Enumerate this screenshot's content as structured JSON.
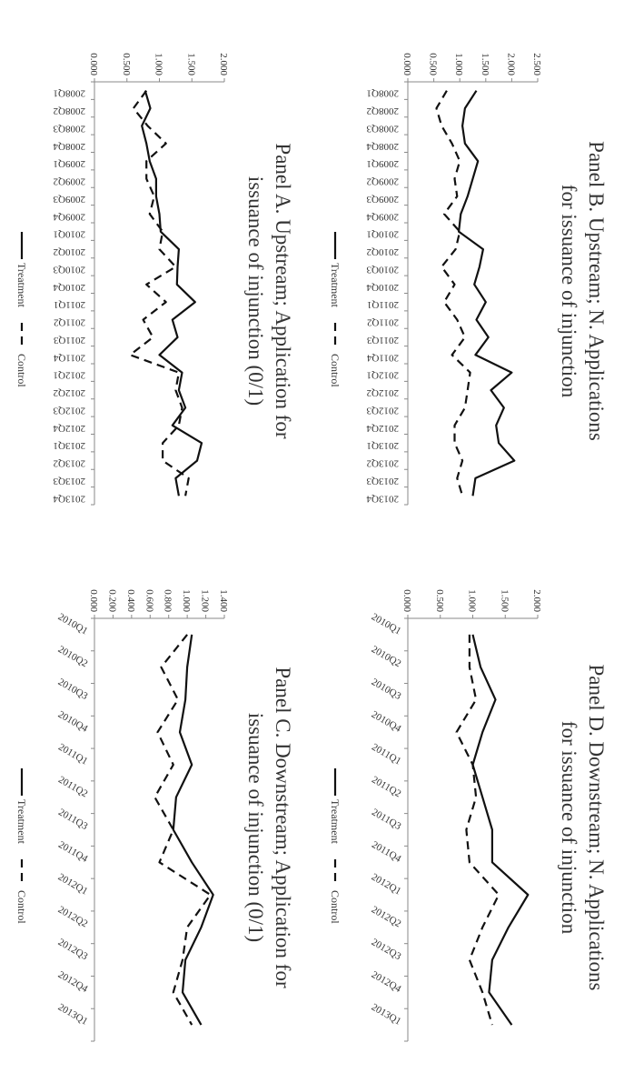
{
  "chart_data": [
    {
      "type": "line",
      "title": "Panel A. Upstream; Application for issuance of injunction (0/1)",
      "title_lines": [
        "Panel A. Upstream; Application for",
        "issuance of injunction (0/1)"
      ],
      "xlabel": "",
      "ylabel": "",
      "ylim": [
        0,
        2.0
      ],
      "yticks": [
        "0.000",
        "0.500",
        "1.000",
        "1.500",
        "2.000"
      ],
      "grid": false,
      "legend": "bottom",
      "categories": [
        "2008Q1",
        "2008Q2",
        "2008Q3",
        "2008Q4",
        "2009Q1",
        "2009Q2",
        "2009Q3",
        "2009Q4",
        "2010Q1",
        "2010Q2",
        "2010Q3",
        "2010Q4",
        "2011Q1",
        "2011Q2",
        "2011Q3",
        "2011Q4",
        "2012Q1",
        "2012Q2",
        "2012Q3",
        "2012Q4",
        "2013Q1",
        "2013Q2",
        "2013Q3",
        "2013Q4"
      ],
      "series": [
        {
          "name": "Treatment",
          "style": "solid",
          "values": [
            0.78,
            0.86,
            0.73,
            0.8,
            0.85,
            0.95,
            0.95,
            1.0,
            1.02,
            1.3,
            1.28,
            1.27,
            1.55,
            1.2,
            1.28,
            1.0,
            1.35,
            1.3,
            1.4,
            1.2,
            1.65,
            1.58,
            1.25,
            1.3
          ]
        },
        {
          "name": "Control",
          "style": "dashed",
          "values": [
            0.8,
            0.6,
            0.82,
            1.1,
            0.8,
            0.8,
            0.92,
            0.85,
            1.05,
            1.0,
            1.25,
            0.8,
            1.1,
            0.75,
            0.9,
            0.55,
            1.3,
            1.25,
            1.35,
            1.3,
            1.05,
            1.05,
            1.45,
            1.4
          ]
        }
      ]
    },
    {
      "type": "line",
      "title": "Panel B. Upstream; N. Applications for issuance of injunction",
      "title_lines": [
        "Panel B. Upstream; N. Applications",
        "for issuance of injunction"
      ],
      "xlabel": "",
      "ylabel": "",
      "ylim": [
        0,
        2.5
      ],
      "yticks": [
        "0.000",
        "0.500",
        "1.000",
        "1.500",
        "2.000",
        "2.500"
      ],
      "grid": false,
      "legend": "bottom",
      "categories": [
        "2008Q1",
        "2008Q2",
        "2008Q3",
        "2008Q4",
        "2009Q1",
        "2009Q2",
        "2009Q3",
        "2009Q4",
        "2010Q1",
        "2010Q2",
        "2010Q3",
        "2010Q4",
        "2011Q1",
        "2011Q2",
        "2011Q3",
        "2011Q4",
        "2012Q1",
        "2012Q2",
        "2012Q3",
        "2012Q4",
        "2013Q1",
        "2013Q2",
        "2013Q3",
        "2013Q4"
      ],
      "series": [
        {
          "name": "Treatment",
          "style": "solid",
          "values": [
            1.32,
            1.1,
            1.05,
            1.1,
            1.35,
            1.25,
            1.15,
            1.02,
            0.98,
            1.45,
            1.38,
            1.28,
            1.5,
            1.32,
            1.55,
            1.3,
            2.0,
            1.6,
            1.85,
            1.7,
            1.75,
            2.05,
            1.3,
            1.25
          ]
        },
        {
          "name": "Control",
          "style": "dashed",
          "values": [
            0.75,
            0.55,
            0.65,
            0.85,
            1.0,
            0.9,
            0.95,
            0.7,
            1.0,
            0.92,
            0.65,
            0.9,
            0.7,
            0.95,
            1.1,
            0.85,
            1.2,
            1.15,
            1.1,
            0.9,
            0.9,
            1.05,
            0.95,
            1.05
          ]
        }
      ]
    },
    {
      "type": "line",
      "title": "Panel C. Downstream; Application for issuance of injunction (0/1)",
      "title_lines": [
        "Panel C. Downstream; Application for",
        "issuance of injunction (0/1)"
      ],
      "xlabel": "",
      "ylabel": "",
      "ylim": [
        0,
        1.4
      ],
      "yticks": [
        "0.000",
        "0.200",
        "0.400",
        "0.600",
        "0.800",
        "1.000",
        "1.200",
        "1.400"
      ],
      "grid": false,
      "legend": "bottom",
      "categories": [
        "2010Q1",
        "2010Q2",
        "2010Q3",
        "2010Q4",
        "2011Q1",
        "2011Q2",
        "2011Q3",
        "2011Q4",
        "2012Q1",
        "2012Q2",
        "2012Q3",
        "2012Q4",
        "2013Q1"
      ],
      "series": [
        {
          "name": "Treatment",
          "style": "solid",
          "values": [
            1.05,
            1.0,
            0.98,
            0.92,
            1.05,
            0.88,
            0.85,
            1.05,
            1.28,
            1.15,
            0.98,
            0.95,
            1.15
          ]
        },
        {
          "name": "Control",
          "style": "dashed",
          "values": [
            1.0,
            0.72,
            0.9,
            0.68,
            0.85,
            0.65,
            0.85,
            0.7,
            1.25,
            1.0,
            0.95,
            0.85,
            1.05
          ]
        }
      ]
    },
    {
      "type": "line",
      "title": "Panel D. Downstream; N. Applications for issuance of injunction",
      "title_lines": [
        "Panel D. Downstream; N. Applications",
        "for issuance of injunction"
      ],
      "xlabel": "",
      "ylabel": "",
      "ylim": [
        0,
        2.0
      ],
      "yticks": [
        "0.000",
        "0.500",
        "1.000",
        "1.500",
        "2.000"
      ],
      "grid": false,
      "legend": "bottom",
      "categories": [
        "2010Q1",
        "2010Q2",
        "2010Q3",
        "2010Q4",
        "2011Q1",
        "2011Q2",
        "2011Q3",
        "2011Q4",
        "2012Q1",
        "2012Q2",
        "2012Q3",
        "2012Q4",
        "2013Q1"
      ],
      "series": [
        {
          "name": "Treatment",
          "style": "solid",
          "values": [
            1.0,
            1.12,
            1.35,
            1.15,
            1.0,
            1.15,
            1.3,
            1.3,
            1.85,
            1.55,
            1.3,
            1.25,
            1.6
          ]
        },
        {
          "name": "Control",
          "style": "dashed",
          "values": [
            0.95,
            0.95,
            1.05,
            0.75,
            1.0,
            1.05,
            0.9,
            0.95,
            1.4,
            1.15,
            0.95,
            1.15,
            1.3
          ]
        }
      ]
    }
  ]
}
